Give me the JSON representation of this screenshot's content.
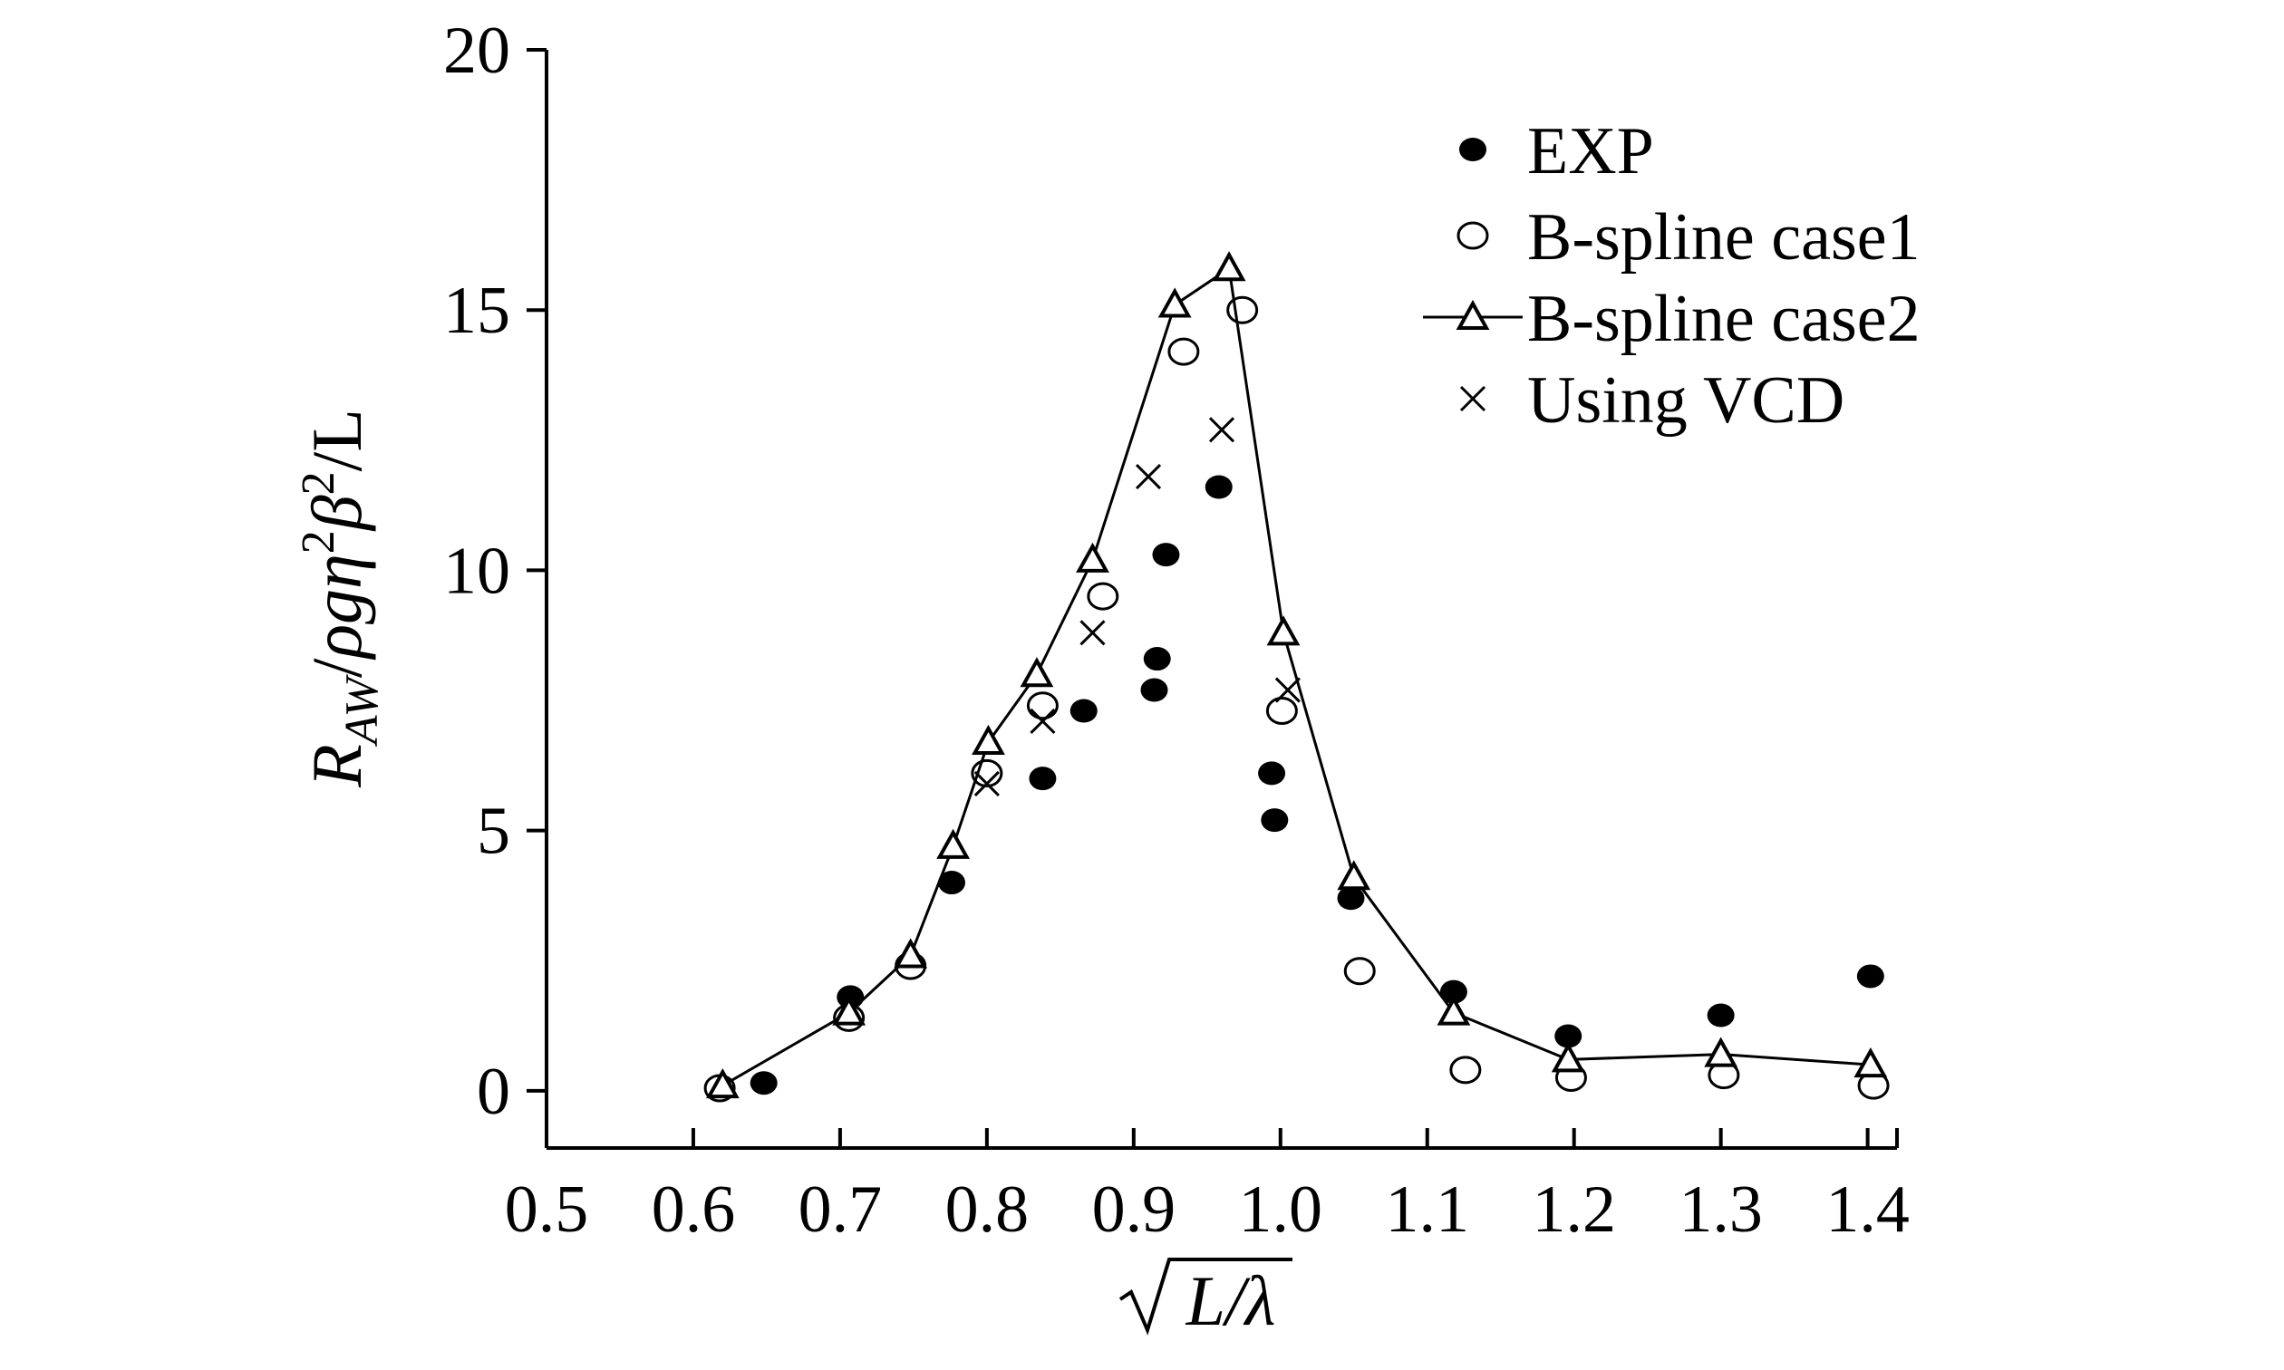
{
  "chart_data": {
    "type": "scatter",
    "title": "",
    "xlabel": "√L/λ",
    "ylabel": "R_AW/ρgη²β²/L",
    "xlim": [
      0.5,
      1.42
    ],
    "ylim": [
      -1.1,
      20
    ],
    "xticks": [
      0.5,
      0.6,
      0.7,
      0.8,
      0.9,
      1.0,
      1.1,
      1.2,
      1.3,
      1.4
    ],
    "xtick_labels": [
      "0.5",
      "0.6",
      "0.7",
      "0.8",
      "0.9",
      "1.0",
      "1.1",
      "1.2",
      "1.3",
      "1.4"
    ],
    "yticks": [
      0,
      5,
      10,
      15,
      20
    ],
    "ytick_labels": [
      "0",
      "5",
      "10",
      "15",
      "20"
    ],
    "legend_position": "top-right",
    "series": [
      {
        "name": "EXP",
        "marker": "filled-circle",
        "line": false,
        "x": [
          0.648,
          0.707,
          0.776,
          0.838,
          0.866,
          0.914,
          0.916,
          0.922,
          0.958,
          0.994,
          0.996,
          1.048,
          1.118,
          1.196,
          1.3,
          1.402
        ],
        "y": [
          0.15,
          1.8,
          4.0,
          6.0,
          7.3,
          7.7,
          8.3,
          10.3,
          11.6,
          6.1,
          5.2,
          3.7,
          1.9,
          1.05,
          1.45,
          2.2
        ]
      },
      {
        "name": "B-spline case1",
        "marker": "open-circle",
        "line": false,
        "x": [
          0.618,
          0.706,
          0.748,
          0.8,
          0.838,
          0.879,
          0.934,
          0.974,
          1.001,
          1.054,
          1.126,
          1.198,
          1.302,
          1.404
        ],
        "y": [
          0.05,
          1.4,
          2.4,
          6.1,
          7.4,
          9.5,
          14.2,
          15.0,
          7.3,
          2.3,
          0.4,
          0.25,
          0.3,
          0.1
        ]
      },
      {
        "name": "B-spline case2",
        "marker": "open-triangle",
        "line": true,
        "x": [
          0.62,
          0.706,
          0.748,
          0.777,
          0.801,
          0.834,
          0.872,
          0.928,
          0.965,
          1.002,
          1.05,
          1.118,
          1.196,
          1.3,
          1.402
        ],
        "y": [
          0.1,
          1.5,
          2.6,
          4.7,
          6.7,
          8.0,
          10.2,
          15.1,
          15.8,
          8.8,
          4.1,
          1.5,
          0.6,
          0.7,
          0.5
        ]
      },
      {
        "name": "Using VCD",
        "marker": "cross",
        "line": false,
        "x": [
          0.8,
          0.838,
          0.872,
          0.91,
          0.96,
          1.005
        ],
        "y": [
          5.9,
          7.1,
          8.8,
          11.8,
          12.7,
          7.7
        ]
      }
    ]
  }
}
